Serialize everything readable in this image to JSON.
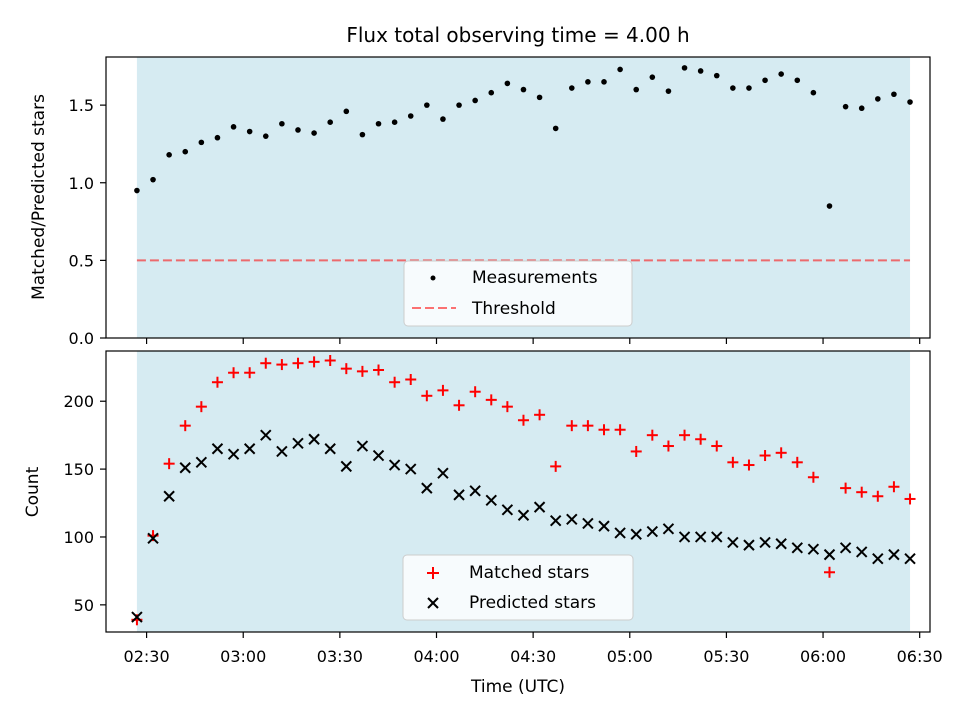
{
  "title": "Flux total observing time = 4.00 h",
  "colors": {
    "shade": "#add8e6",
    "measurement": "#000000",
    "threshold": "#ff0000",
    "matched": "#ff0000",
    "predicted": "#000000"
  },
  "chart_data": [
    {
      "type": "scatter",
      "ylabel": "Matched/Predicted stars",
      "ylim": [
        0,
        1.81
      ],
      "yticks": [
        "0.0",
        "0.5",
        "1.0",
        "1.5"
      ],
      "shaded_span": [
        "02:27",
        "06:27"
      ],
      "threshold": 0.5,
      "legend": {
        "placement": "lower center",
        "entries": [
          "Measurements",
          "Threshold"
        ]
      },
      "series": [
        {
          "name": "Measurements",
          "x": [
            "02:27",
            "02:32",
            "02:37",
            "02:42",
            "02:47",
            "02:52",
            "02:57",
            "03:02",
            "03:07",
            "03:12",
            "03:17",
            "03:22",
            "03:27",
            "03:32",
            "03:37",
            "03:42",
            "03:47",
            "03:52",
            "03:57",
            "04:02",
            "04:07",
            "04:12",
            "04:17",
            "04:22",
            "04:27",
            "04:32",
            "04:37",
            "04:42",
            "04:47",
            "04:52",
            "04:57",
            "05:02",
            "05:07",
            "05:12",
            "05:17",
            "05:22",
            "05:27",
            "05:32",
            "05:37",
            "05:42",
            "05:47",
            "05:52",
            "05:57",
            "06:02",
            "06:07",
            "06:12",
            "06:17",
            "06:22",
            "06:27"
          ],
          "values": [
            0.95,
            1.02,
            1.18,
            1.2,
            1.26,
            1.29,
            1.36,
            1.33,
            1.3,
            1.38,
            1.34,
            1.32,
            1.39,
            1.46,
            1.31,
            1.38,
            1.39,
            1.43,
            1.5,
            1.41,
            1.5,
            1.53,
            1.58,
            1.64,
            1.6,
            1.55,
            1.35,
            1.61,
            1.65,
            1.65,
            1.73,
            1.6,
            1.68,
            1.59,
            1.74,
            1.72,
            1.69,
            1.61,
            1.61,
            1.66,
            1.7,
            1.66,
            1.58,
            0.85,
            1.49,
            1.48,
            1.54,
            1.57,
            1.52
          ]
        }
      ]
    },
    {
      "type": "scatter",
      "ylabel": "Count",
      "xlabel": "Time (UTC)",
      "ylim": [
        30,
        237
      ],
      "yticks": [
        "50",
        "100",
        "150",
        "200"
      ],
      "xticks": [
        "02:30",
        "03:00",
        "03:30",
        "04:00",
        "04:30",
        "05:00",
        "05:30",
        "06:00",
        "06:30"
      ],
      "shaded_span": [
        "02:27",
        "06:27"
      ],
      "legend": {
        "placement": "lower center",
        "entries": [
          "Matched stars",
          "Predicted stars"
        ]
      },
      "series": [
        {
          "name": "Matched stars",
          "x": [
            "02:27",
            "02:32",
            "02:37",
            "02:42",
            "02:47",
            "02:52",
            "02:57",
            "03:02",
            "03:07",
            "03:12",
            "03:17",
            "03:22",
            "03:27",
            "03:32",
            "03:37",
            "03:42",
            "03:47",
            "03:52",
            "03:57",
            "04:02",
            "04:07",
            "04:12",
            "04:17",
            "04:22",
            "04:27",
            "04:32",
            "04:37",
            "04:42",
            "04:47",
            "04:52",
            "04:57",
            "05:02",
            "05:07",
            "05:12",
            "05:17",
            "05:22",
            "05:27",
            "05:32",
            "05:37",
            "05:42",
            "05:47",
            "05:52",
            "05:57",
            "06:02",
            "06:07",
            "06:12",
            "06:17",
            "06:22",
            "06:27"
          ],
          "values": [
            39,
            101,
            154,
            182,
            196,
            214,
            221,
            221,
            228,
            227,
            228,
            229,
            230,
            224,
            222,
            223,
            214,
            216,
            204,
            208,
            197,
            207,
            201,
            196,
            186,
            190,
            152,
            182,
            182,
            179,
            179,
            163,
            175,
            167,
            175,
            172,
            167,
            155,
            153,
            160,
            162,
            155,
            144,
            74,
            136,
            133,
            130,
            137,
            128
          ]
        },
        {
          "name": "Predicted stars",
          "x": [
            "02:27",
            "02:32",
            "02:37",
            "02:42",
            "02:47",
            "02:52",
            "02:57",
            "03:02",
            "03:07",
            "03:12",
            "03:17",
            "03:22",
            "03:27",
            "03:32",
            "03:37",
            "03:42",
            "03:47",
            "03:52",
            "03:57",
            "04:02",
            "04:07",
            "04:12",
            "04:17",
            "04:22",
            "04:27",
            "04:32",
            "04:37",
            "04:42",
            "04:47",
            "04:52",
            "04:57",
            "05:02",
            "05:07",
            "05:12",
            "05:17",
            "05:22",
            "05:27",
            "05:32",
            "05:37",
            "05:42",
            "05:47",
            "05:52",
            "05:57",
            "06:02",
            "06:07",
            "06:12",
            "06:17",
            "06:22",
            "06:27"
          ],
          "values": [
            41,
            99,
            130,
            151,
            155,
            165,
            161,
            165,
            175,
            163,
            169,
            172,
            165,
            152,
            167,
            160,
            153,
            150,
            136,
            147,
            131,
            134,
            127,
            120,
            116,
            122,
            112,
            113,
            110,
            108,
            103,
            102,
            104,
            106,
            100,
            100,
            100,
            96,
            94,
            96,
            95,
            92,
            91,
            87,
            92,
            89,
            84,
            87,
            84
          ]
        }
      ]
    }
  ]
}
